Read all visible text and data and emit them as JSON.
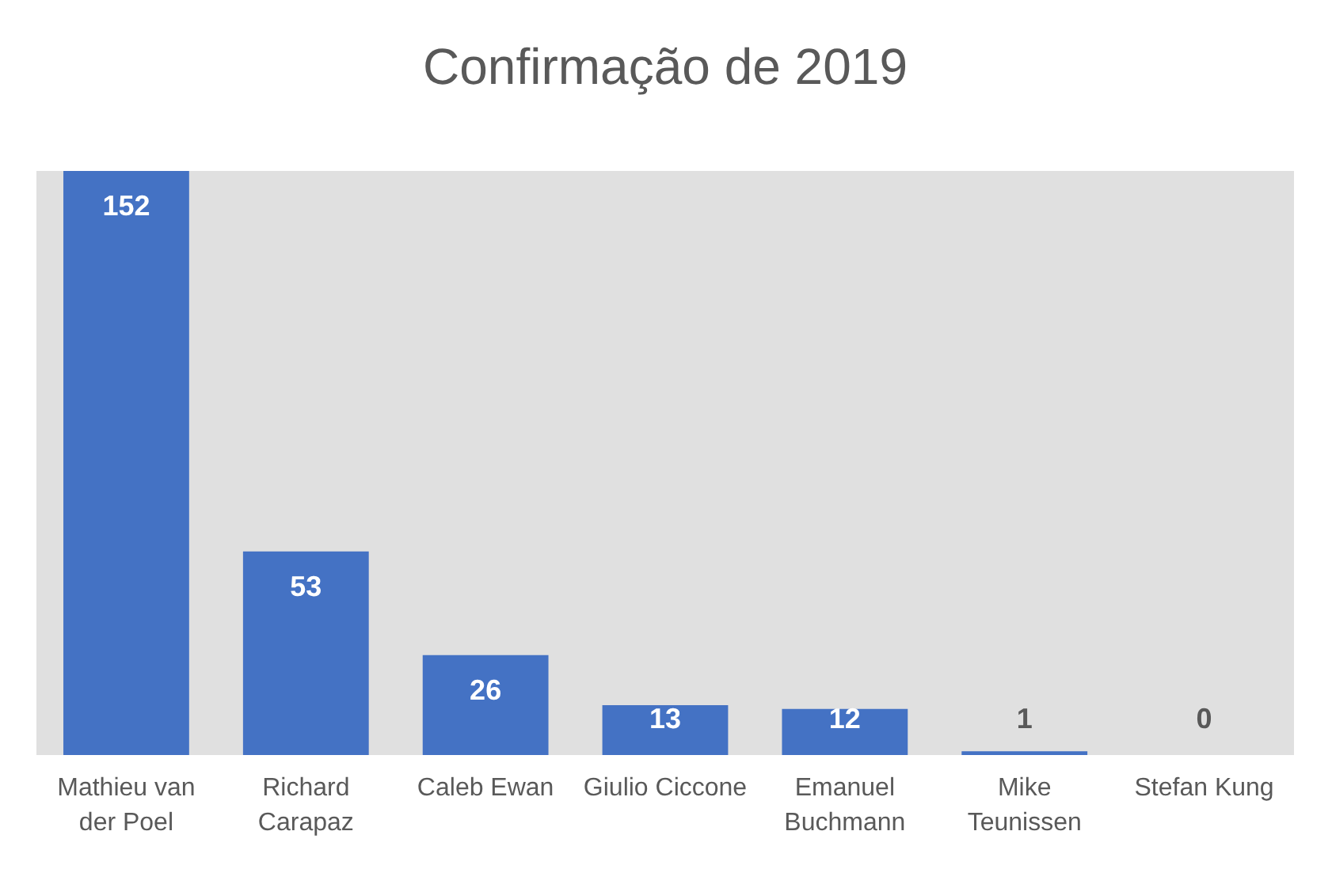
{
  "chart_data": {
    "type": "bar",
    "title": "Confirmação de 2019",
    "categories": [
      "Mathieu van der Poel",
      "Richard Carapaz",
      "Caleb Ewan",
      "Giulio Ciccone",
      "Emanuel Buchmann",
      "Mike Teunissen",
      "Stefan Kung"
    ],
    "values": [
      152,
      53,
      26,
      13,
      12,
      1,
      0
    ],
    "color": "#4472c4",
    "data_labels": true
  }
}
